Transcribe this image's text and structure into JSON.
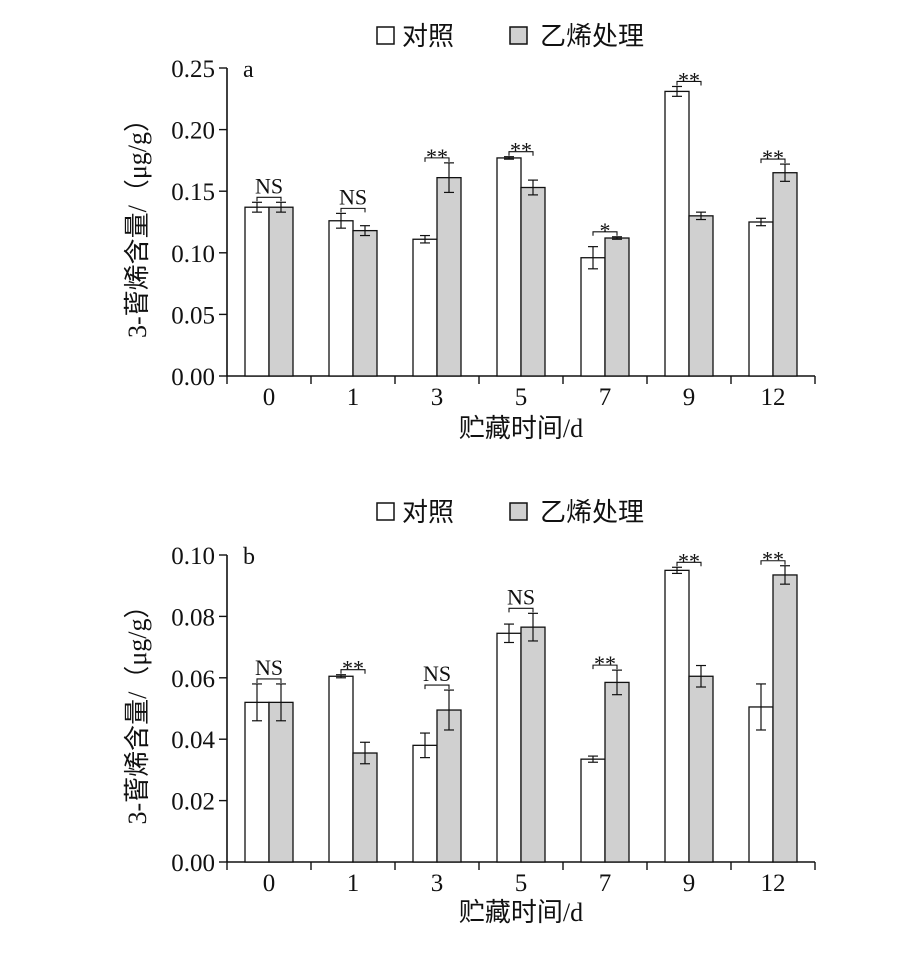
{
  "legend": {
    "control": "对照",
    "ethylene": "乙烯处理"
  },
  "colors": {
    "control_fill": "#ffffff",
    "ethylene_fill": "#d0d0d0",
    "stroke": "#111111"
  },
  "chart_data": [
    {
      "type": "bar",
      "panel_label": "a",
      "xlabel": "贮藏时间/d",
      "ylabel": "3-蒈烯含量/（μg/g）",
      "categories": [
        "0",
        "1",
        "3",
        "5",
        "7",
        "9",
        "12"
      ],
      "ylim": [
        0,
        0.25
      ],
      "yticks": [
        "0.00",
        "0.05",
        "0.10",
        "0.15",
        "0.20",
        "0.25"
      ],
      "series": [
        {
          "name": "对照",
          "values": [
            0.137,
            0.126,
            0.111,
            0.177,
            0.096,
            0.231,
            0.125
          ],
          "errors": [
            0.004,
            0.006,
            0.003,
            0.001,
            0.009,
            0.004,
            0.003
          ]
        },
        {
          "name": "乙烯处理",
          "values": [
            0.137,
            0.118,
            0.161,
            0.153,
            0.112,
            0.13,
            0.165
          ],
          "errors": [
            0.004,
            0.004,
            0.012,
            0.006,
            0.001,
            0.003,
            0.007
          ]
        }
      ],
      "significance": [
        "NS",
        "NS",
        "**",
        "**",
        "*",
        "**",
        "**"
      ],
      "grid": false,
      "legend_position": "top-center"
    },
    {
      "type": "bar",
      "panel_label": "b",
      "xlabel": "贮藏时间/d",
      "ylabel": "3-蒈烯含量/（μg/g）",
      "categories": [
        "0",
        "1",
        "3",
        "5",
        "7",
        "9",
        "12"
      ],
      "ylim": [
        0,
        0.1
      ],
      "yticks": [
        "0.00",
        "0.02",
        "0.04",
        "0.06",
        "0.08",
        "0.10"
      ],
      "series": [
        {
          "name": "对照",
          "values": [
            0.052,
            0.0605,
            0.038,
            0.0745,
            0.0335,
            0.095,
            0.0505
          ],
          "errors": [
            0.006,
            0.0005,
            0.004,
            0.003,
            0.001,
            0.001,
            0.0075
          ]
        },
        {
          "name": "乙烯处理",
          "values": [
            0.052,
            0.0355,
            0.0495,
            0.0765,
            0.0585,
            0.0605,
            0.0935
          ],
          "errors": [
            0.006,
            0.0035,
            0.0065,
            0.0045,
            0.004,
            0.0035,
            0.003
          ]
        }
      ],
      "significance": [
        "NS",
        "**",
        "NS",
        "NS",
        "**",
        "**",
        "**"
      ],
      "grid": false,
      "legend_position": "top-center"
    }
  ]
}
